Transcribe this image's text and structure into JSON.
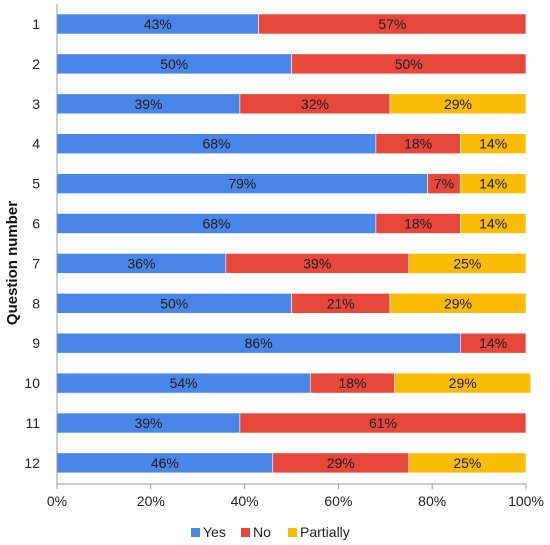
{
  "chart_data": {
    "type": "bar",
    "orientation": "horizontal",
    "stacked": true,
    "ylabel": "Question number",
    "xlabel": "",
    "categories": [
      "1",
      "2",
      "3",
      "4",
      "5",
      "6",
      "7",
      "8",
      "9",
      "10",
      "11",
      "12"
    ],
    "x_ticks": [
      "0%",
      "20%",
      "40%",
      "60%",
      "80%",
      "100%"
    ],
    "xlim": [
      0,
      100
    ],
    "series": [
      {
        "name": "Yes",
        "color": "#4a86e8",
        "values": [
          43,
          50,
          39,
          68,
          79,
          68,
          36,
          50,
          86,
          54,
          39,
          46
        ]
      },
      {
        "name": "No",
        "color": "#e8473c",
        "values": [
          57,
          50,
          32,
          18,
          7,
          18,
          39,
          21,
          14,
          18,
          61,
          29
        ]
      },
      {
        "name": "Partially",
        "color": "#fbbc05",
        "values": [
          0,
          0,
          29,
          14,
          14,
          14,
          25,
          29,
          0,
          29,
          0,
          25
        ]
      }
    ],
    "data_labels": [
      [
        "43%",
        "57%",
        ""
      ],
      [
        "50%",
        "50%",
        ""
      ],
      [
        "39%",
        "32%",
        "29%"
      ],
      [
        "68%",
        "18%",
        "14%"
      ],
      [
        "79%",
        "7%",
        "14%"
      ],
      [
        "68%",
        "18%",
        "14%"
      ],
      [
        "36%",
        "39%",
        "25%"
      ],
      [
        "50%",
        "21%",
        "29%"
      ],
      [
        "86%",
        "14%",
        ""
      ],
      [
        "54%",
        "18%",
        "29%"
      ],
      [
        "39%",
        "61%",
        ""
      ],
      [
        "46%",
        "29%",
        "25%"
      ]
    ],
    "grid": false,
    "legend_position": "bottom-center"
  }
}
